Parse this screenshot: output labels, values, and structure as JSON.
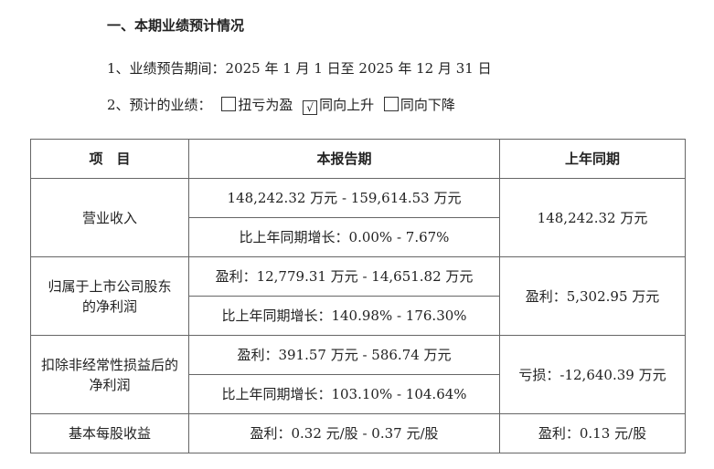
{
  "heading": "一、本期业绩预计情况",
  "period_line": "1、业绩预告期间：2025 年 1 月 1 日至 2025 年 12 月 31 日",
  "performance": {
    "label": "2、预计的业绩：",
    "options": [
      {
        "label": "扭亏为盈",
        "checked": false,
        "mark": ""
      },
      {
        "label": "同向上升",
        "checked": true,
        "mark": "√"
      },
      {
        "label": "同向下降",
        "checked": false,
        "mark": ""
      }
    ]
  },
  "table": {
    "headers": [
      "项　目",
      "本报告期",
      "上年同期"
    ],
    "rows": [
      {
        "item": "营业收入",
        "current": [
          "148,242.32 万元 - 159,614.53 万元",
          "比上年同期增长：0.00%  -  7.67%"
        ],
        "prior": "148,242.32 万元"
      },
      {
        "item": "归属于上市公司股东的净利润",
        "current": [
          "盈利：12,779.31 万元 - 14,651.82 万元",
          "比上年同期增长：140.98%  -  176.30%"
        ],
        "prior": "盈利：5,302.95 万元"
      },
      {
        "item": "扣除非经常性损益后的净利润",
        "current": [
          "盈利：391.57 万元 - 586.74 万元",
          "比上年同期增长：103.10%  -  104.64%"
        ],
        "prior": "亏损：-12,640.39 万元"
      },
      {
        "item": "基本每股收益",
        "current": [
          "盈利：0.32 元/股 - 0.37 元/股"
        ],
        "prior": "盈利：0.13 元/股"
      }
    ]
  }
}
